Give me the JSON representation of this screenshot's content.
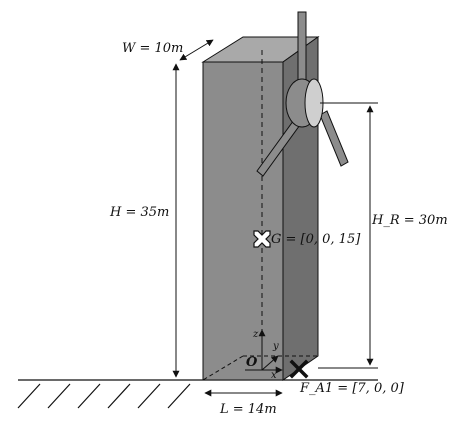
{
  "diagram": {
    "labels": {
      "width": "W = 10m",
      "height": "H = 35m",
      "rotor_height": "H_R = 30m",
      "length": "L = 14m",
      "gravity_center": "G = [0, 0, 15]",
      "anchor_point": "F_A1 = [7, 0, 0]",
      "axis_z": "z",
      "axis_y": "y",
      "axis_x": "x",
      "origin": "O"
    },
    "colors": {
      "structure_front": "#8c8c8c",
      "structure_top": "#a9a9a9",
      "structure_side": "#6f6f6f",
      "line": "#111111",
      "hub": "#cfcfcf"
    },
    "icons": [
      "cross-marker-icon",
      "bold-x-marker-icon",
      "double-arrow-icon"
    ]
  }
}
